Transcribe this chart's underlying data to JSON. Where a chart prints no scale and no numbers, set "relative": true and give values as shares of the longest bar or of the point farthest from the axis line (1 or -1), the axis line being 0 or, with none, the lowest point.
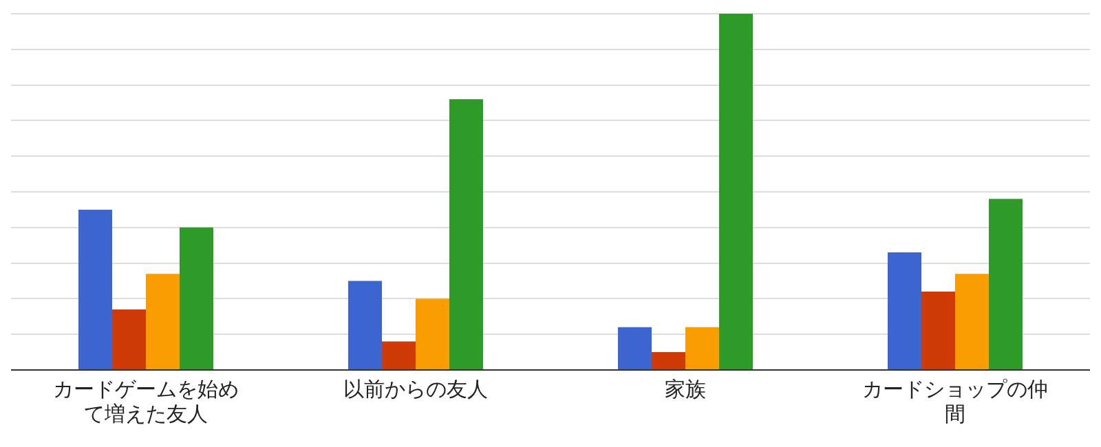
{
  "chart_data": {
    "type": "bar",
    "relative": true,
    "grid": "y",
    "categories": [
      "カードゲームを始めて増えた友人",
      "以前からの友人",
      "家族",
      "カードショップの仲間"
    ],
    "series": [
      {
        "color": "#3d65cf",
        "values": [
          0.45,
          0.25,
          0.12,
          0.33
        ]
      },
      {
        "color": "#d03a06",
        "values": [
          0.17,
          0.08,
          0.05,
          0.22
        ]
      },
      {
        "color": "#f99d00",
        "values": [
          0.27,
          0.2,
          0.12,
          0.27
        ]
      },
      {
        "color": "#2e9a28",
        "values": [
          0.4,
          0.76,
          1,
          0.48
        ]
      }
    ]
  }
}
